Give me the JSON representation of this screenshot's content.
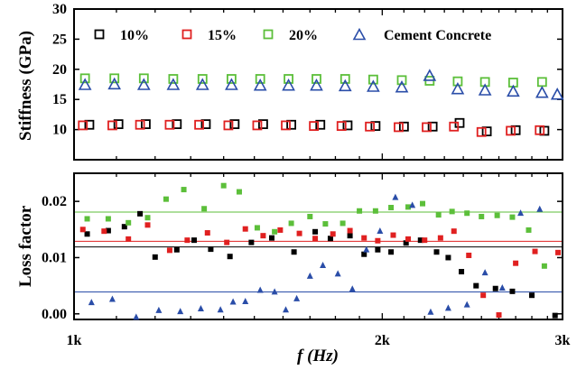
{
  "chart_data": [
    {
      "type": "scatter",
      "ylabel": "Stiffness (GPa)",
      "ylim": [
        5,
        30
      ],
      "xlim": [
        1000,
        3000
      ],
      "x_scale": "log",
      "yticks": [
        "10",
        "15",
        "20",
        "25",
        "30"
      ],
      "legend_placement": "top",
      "series": [
        {
          "name": "10%",
          "color": "#000000",
          "marker": "open-square",
          "x": [
            1035,
            1105,
            1175,
            1260,
            1345,
            1435,
            1530,
            1630,
            1740,
            1850,
            1970,
            2100,
            2240,
            2380,
            2530,
            2700,
            2880
          ],
          "y": [
            10.8,
            10.9,
            10.9,
            10.9,
            10.9,
            10.9,
            10.9,
            10.8,
            10.8,
            10.7,
            10.6,
            10.5,
            10.5,
            11.1,
            9.7,
            9.9,
            9.8
          ]
        },
        {
          "name": "15%",
          "color": "#e02020",
          "marker": "open-square",
          "x": [
            1020,
            1090,
            1160,
            1240,
            1325,
            1415,
            1510,
            1610,
            1715,
            1825,
            1945,
            2075,
            2210,
            2350,
            2500,
            2670,
            2850
          ],
          "y": [
            10.7,
            10.7,
            10.8,
            10.8,
            10.8,
            10.7,
            10.7,
            10.7,
            10.6,
            10.6,
            10.5,
            10.4,
            10.4,
            10.5,
            9.6,
            9.8,
            9.9
          ]
        },
        {
          "name": "20%",
          "color": "#5cbf3a",
          "marker": "open-square",
          "x": [
            1025,
            1095,
            1170,
            1250,
            1335,
            1425,
            1520,
            1620,
            1725,
            1840,
            1960,
            2090,
            2225,
            2370,
            2520,
            2685,
            2865
          ],
          "y": [
            18.5,
            18.5,
            18.5,
            18.4,
            18.4,
            18.4,
            18.4,
            18.4,
            18.4,
            18.4,
            18.3,
            18.2,
            18.1,
            18.0,
            17.9,
            17.8,
            17.9
          ]
        },
        {
          "name": "Cement Concrete",
          "color": "#2a4da8",
          "marker": "open-triangle",
          "x": [
            1025,
            1095,
            1170,
            1250,
            1335,
            1425,
            1520,
            1620,
            1725,
            1840,
            1960,
            2090,
            2225,
            2370,
            2520,
            2685,
            2865,
            2965
          ],
          "y": [
            17.5,
            17.6,
            17.5,
            17.5,
            17.5,
            17.5,
            17.4,
            17.4,
            17.4,
            17.3,
            17.2,
            17.1,
            19.0,
            16.8,
            16.6,
            16.4,
            16.2,
            15.9
          ]
        }
      ]
    },
    {
      "type": "scatter",
      "xlabel": "f (Hz)",
      "ylabel": "Loss factor",
      "ylim": [
        -0.001,
        0.025
      ],
      "xlim": [
        1000,
        3000
      ],
      "x_scale": "log",
      "yticks": [
        "0.00",
        "0.01",
        "0.02"
      ],
      "xticks": [
        "1k",
        "2k",
        "3k"
      ],
      "reference_lines": [
        {
          "series": "10%",
          "y": 0.0119
        },
        {
          "series": "15%",
          "y": 0.0129
        },
        {
          "series": "20%",
          "y": 0.0181
        },
        {
          "series": "Cement Concrete",
          "y": 0.0039
        }
      ],
      "series": [
        {
          "name": "10%",
          "color": "#000000",
          "marker": "filled-square",
          "x": [
            1030,
            1080,
            1120,
            1160,
            1200,
            1260,
            1310,
            1360,
            1420,
            1490,
            1560,
            1640,
            1720,
            1780,
            1860,
            1920,
            1980,
            2040,
            2110,
            2180,
            2260,
            2320,
            2390,
            2470,
            2580,
            2680,
            2800,
            2950
          ],
          "y": [
            0.0142,
            0.0148,
            0.0155,
            0.0178,
            0.0101,
            0.0114,
            0.0131,
            0.0115,
            0.0102,
            0.0127,
            0.0135,
            0.011,
            0.0146,
            0.0134,
            0.0139,
            0.0106,
            0.0114,
            0.011,
            0.0126,
            0.0131,
            0.011,
            0.01,
            0.0075,
            0.005,
            0.0045,
            0.004,
            0.0033,
            -0.0003
          ]
        },
        {
          "name": "15%",
          "color": "#e02020",
          "marker": "filled-square",
          "x": [
            1020,
            1070,
            1130,
            1180,
            1240,
            1290,
            1350,
            1410,
            1470,
            1530,
            1590,
            1660,
            1720,
            1790,
            1860,
            1920,
            1980,
            2050,
            2120,
            2200,
            2280,
            2350,
            2430,
            2510,
            2600,
            2700,
            2820,
            2970
          ],
          "y": [
            0.015,
            0.0147,
            0.0133,
            0.0158,
            0.0113,
            0.0131,
            0.0144,
            0.0127,
            0.0151,
            0.0139,
            0.0149,
            0.0143,
            0.0134,
            0.0142,
            0.0148,
            0.0135,
            0.013,
            0.014,
            0.0133,
            0.0131,
            0.0135,
            0.0147,
            0.0104,
            0.0033,
            -0.0002,
            0.009,
            0.0111,
            0.0109
          ]
        },
        {
          "name": "20%",
          "color": "#5cbf3a",
          "marker": "filled-square",
          "x": [
            1030,
            1080,
            1130,
            1180,
            1230,
            1280,
            1340,
            1400,
            1450,
            1510,
            1570,
            1630,
            1700,
            1760,
            1830,
            1900,
            1970,
            2040,
            2120,
            2190,
            2270,
            2340,
            2420,
            2500,
            2590,
            2680,
            2780,
            2880
          ],
          "y": [
            0.0169,
            0.0169,
            0.0162,
            0.0171,
            0.0204,
            0.0221,
            0.0187,
            0.0228,
            0.0217,
            0.0153,
            0.0146,
            0.0161,
            0.0173,
            0.016,
            0.0161,
            0.0183,
            0.0183,
            0.0189,
            0.019,
            0.0196,
            0.0176,
            0.0182,
            0.0179,
            0.0173,
            0.0175,
            0.0172,
            0.0149,
            0.0085
          ]
        },
        {
          "name": "Cement Concrete",
          "color": "#2a4da8",
          "marker": "filled-triangle",
          "x": [
            1040,
            1090,
            1150,
            1210,
            1270,
            1330,
            1390,
            1430,
            1470,
            1520,
            1570,
            1610,
            1650,
            1700,
            1750,
            1810,
            1870,
            1930,
            1990,
            2060,
            2140,
            2230,
            2320,
            2420,
            2520,
            2620,
            2730,
            2850
          ],
          "y": [
            0.0021,
            0.0027,
            -0.0005,
            0.0007,
            0.0005,
            0.001,
            0.0008,
            0.0022,
            0.0023,
            0.0043,
            0.004,
            0.0008,
            0.0028,
            0.0068,
            0.0087,
            0.0072,
            0.0045,
            0.0115,
            0.0148,
            0.0208,
            0.0194,
            0.0004,
            0.0011,
            0.0017,
            0.0074,
            0.0047,
            0.018,
            0.0187
          ]
        }
      ]
    }
  ]
}
